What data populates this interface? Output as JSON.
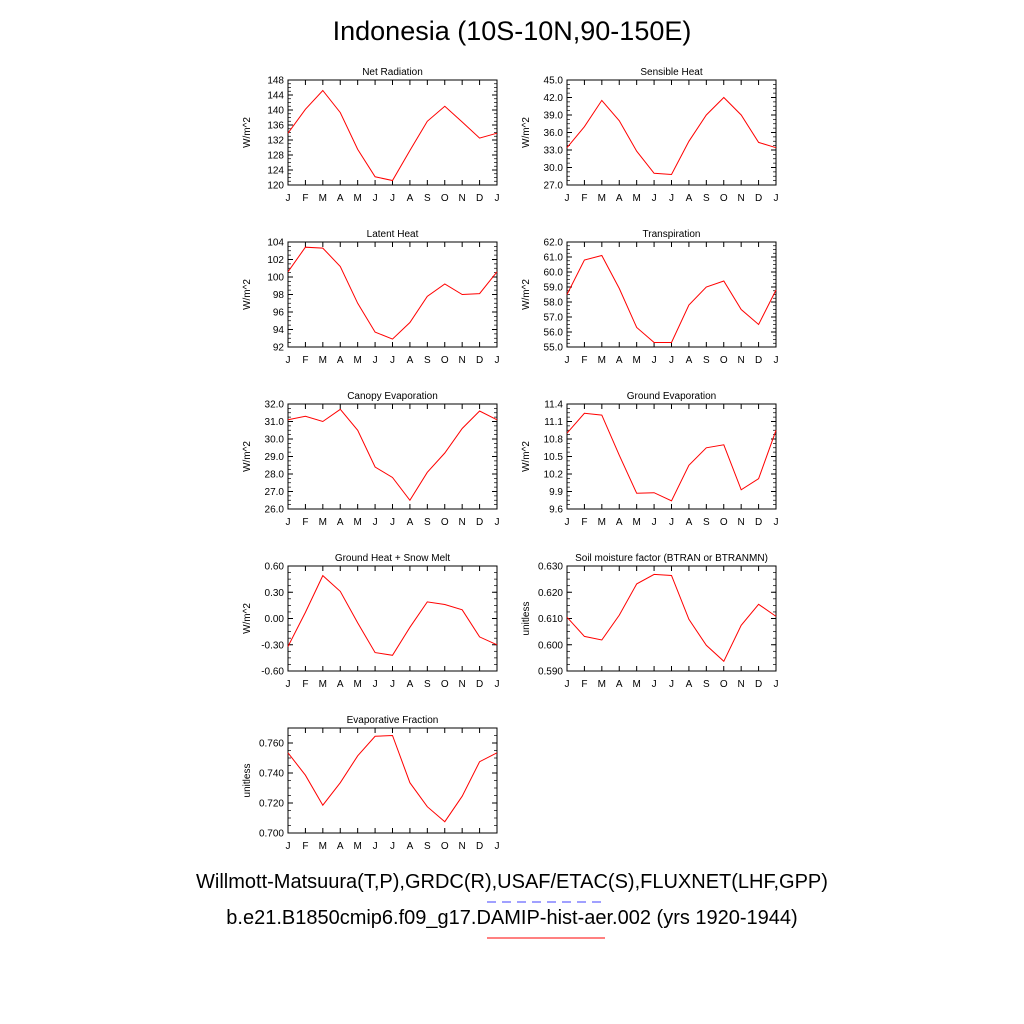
{
  "title": "Indonesia (10S-10N,90-150E)",
  "months": [
    "J",
    "F",
    "M",
    "A",
    "M",
    "J",
    "J",
    "A",
    "S",
    "O",
    "N",
    "D",
    "J"
  ],
  "line_color": "#ff0000",
  "obs_color": "#4040ff",
  "chart_data": [
    {
      "type": "line",
      "title": "Net Radiation",
      "ylabel": "W/m^2",
      "ylim": [
        120,
        148
      ],
      "yticks": [
        "120",
        "124",
        "128",
        "132",
        "136",
        "140",
        "144",
        "148"
      ],
      "values": [
        133.8,
        140.2,
        145.2,
        139.3,
        129.5,
        122.2,
        121.2,
        129.2,
        137.0,
        141.0,
        136.8,
        132.5,
        133.8
      ]
    },
    {
      "type": "line",
      "title": "Sensible Heat",
      "ylabel": "W/m^2",
      "ylim": [
        27,
        45
      ],
      "yticks": [
        "27.0",
        "30.0",
        "33.0",
        "36.0",
        "39.0",
        "42.0",
        "45.0"
      ],
      "values": [
        33.4,
        37.0,
        41.5,
        38.0,
        32.8,
        29.0,
        28.8,
        34.5,
        39.0,
        42.0,
        39.0,
        34.3,
        33.4
      ]
    },
    {
      "type": "line",
      "title": "Latent Heat",
      "ylabel": "W/m^2",
      "ylim": [
        92,
        104
      ],
      "yticks": [
        "92",
        "94",
        "96",
        "98",
        "100",
        "102",
        "104"
      ],
      "values": [
        100.6,
        103.4,
        103.3,
        101.2,
        97.0,
        93.7,
        92.9,
        94.8,
        97.8,
        99.2,
        98.0,
        98.1,
        100.6
      ]
    },
    {
      "type": "line",
      "title": "Transpiration",
      "ylabel": "W/m^2",
      "ylim": [
        55,
        62
      ],
      "yticks": [
        "55.0",
        "56.0",
        "57.0",
        "58.0",
        "59.0",
        "60.0",
        "61.0",
        "62.0"
      ],
      "values": [
        58.5,
        60.8,
        61.1,
        58.9,
        56.3,
        55.3,
        55.3,
        57.8,
        59.0,
        59.4,
        57.5,
        56.5,
        58.8
      ]
    },
    {
      "type": "line",
      "title": "Canopy Evaporation",
      "ylabel": "W/m^2",
      "ylim": [
        26,
        32
      ],
      "yticks": [
        "26.0",
        "27.0",
        "28.0",
        "29.0",
        "30.0",
        "31.0",
        "32.0"
      ],
      "values": [
        31.1,
        31.3,
        31.0,
        31.7,
        30.5,
        28.4,
        27.8,
        26.5,
        28.1,
        29.2,
        30.6,
        31.6,
        31.1
      ]
    },
    {
      "type": "line",
      "title": "Ground Evaporation",
      "ylabel": "W/m^2",
      "ylim": [
        9.6,
        11.4
      ],
      "yticks": [
        "9.6",
        "9.9",
        "10.2",
        "10.5",
        "10.8",
        "11.1",
        "11.4"
      ],
      "values": [
        10.9,
        11.24,
        11.21,
        10.52,
        9.87,
        9.88,
        9.74,
        10.35,
        10.65,
        10.7,
        9.93,
        10.12,
        10.95
      ]
    },
    {
      "type": "line",
      "title": "Ground Heat + Snow Melt",
      "ylabel": "W/m^2",
      "ylim": [
        -0.6,
        0.6
      ],
      "yticks": [
        "-0.60",
        "-0.30",
        "0.00",
        "0.30",
        "0.60"
      ],
      "values": [
        -0.32,
        0.07,
        0.49,
        0.31,
        -0.05,
        -0.39,
        -0.42,
        -0.1,
        0.19,
        0.16,
        0.1,
        -0.21,
        -0.3
      ]
    },
    {
      "type": "line",
      "title": "Soil moisture factor (BTRAN or BTRANMN)",
      "ylabel": "unitless",
      "ylim": [
        0.59,
        0.63
      ],
      "yticks": [
        "0.590",
        "0.600",
        "0.610",
        "0.620",
        "0.630"
      ],
      "values": [
        0.6105,
        0.6032,
        0.6018,
        0.6113,
        0.6232,
        0.6268,
        0.6264,
        0.6097,
        0.5998,
        0.5937,
        0.6074,
        0.6154,
        0.6108
      ]
    },
    {
      "type": "line",
      "title": "Evaporative Fraction",
      "ylabel": "unitless",
      "ylim": [
        0.7,
        0.77
      ],
      "yticks": [
        "0.700",
        "0.720",
        "0.740",
        "0.760"
      ],
      "values": [
        0.7535,
        0.7385,
        0.7185,
        0.7335,
        0.7515,
        0.7645,
        0.765,
        0.7335,
        0.7175,
        0.7075,
        0.7245,
        0.7475,
        0.7535
      ]
    }
  ],
  "legend": {
    "obs_label": "Willmott-Matsuura(T,P),GRDC(R),USAF/ETAC(S),FLUXNET(LHF,GPP)",
    "model_label": "b.e21.B1850cmip6.f09_g17.DAMIP-hist-aer.002 (yrs 1920-1944)"
  }
}
